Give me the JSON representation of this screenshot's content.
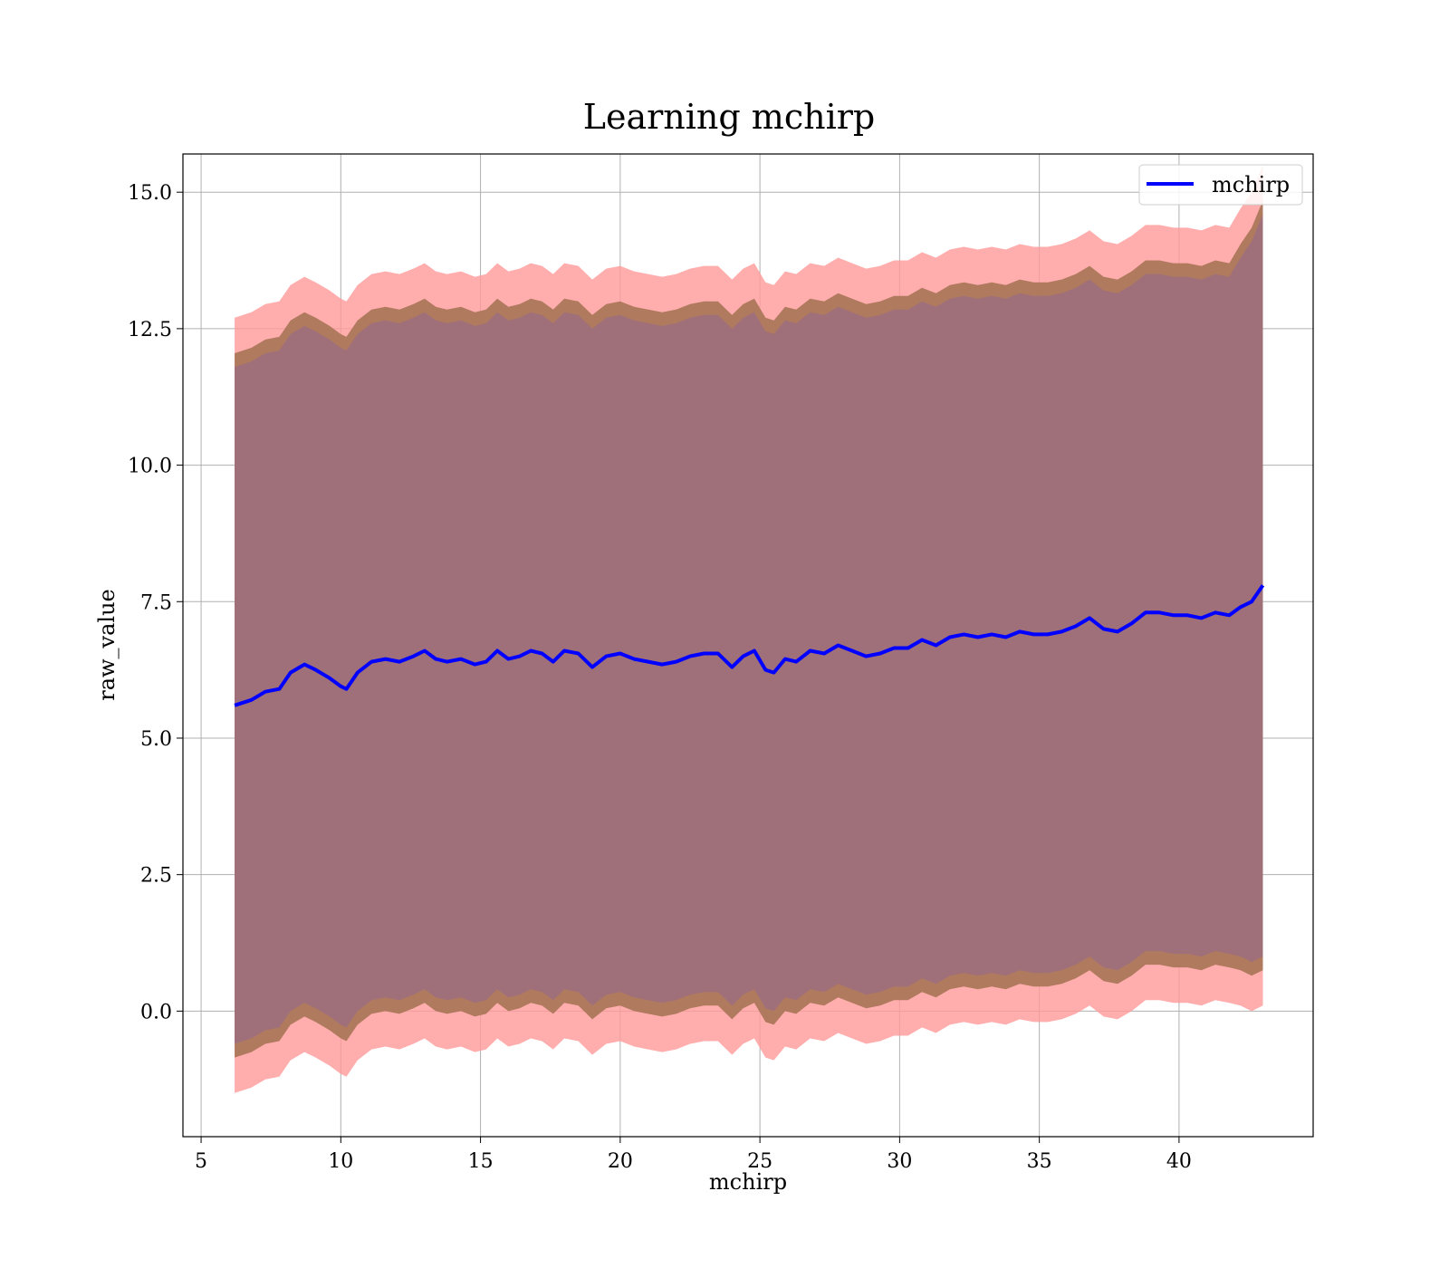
{
  "chart_data": {
    "type": "line",
    "title": "Learning mchirp",
    "xlabel": "mchirp",
    "ylabel": "raw_value",
    "xlim": [
      4.35,
      44.8
    ],
    "ylim": [
      -2.3,
      15.7
    ],
    "xticks": [
      5,
      10,
      15,
      20,
      25,
      30,
      35,
      40
    ],
    "yticks": [
      0.0,
      2.5,
      5.0,
      7.5,
      10.0,
      12.5,
      15.0
    ],
    "xtick_labels": [
      "5",
      "10",
      "15",
      "20",
      "25",
      "30",
      "35",
      "40"
    ],
    "ytick_labels": [
      "0.0",
      "2.5",
      "5.0",
      "7.5",
      "10.0",
      "12.5",
      "15.0"
    ],
    "grid": true,
    "legend_position": "top-right",
    "colors": {
      "line": "#0000ff",
      "outer_band": "#ff9999",
      "middle_band": "#b07a5e",
      "inner_band": "#a0707a",
      "grid": "#b0b0b0"
    },
    "series": [
      {
        "name": "mchirp",
        "x": [
          6.2,
          6.8,
          7.3,
          7.8,
          8.2,
          8.7,
          9.1,
          9.6,
          10.0,
          10.2,
          10.6,
          11.1,
          11.6,
          12.1,
          12.6,
          13.0,
          13.4,
          13.8,
          14.3,
          14.8,
          15.2,
          15.6,
          16.0,
          16.4,
          16.8,
          17.2,
          17.6,
          18.0,
          18.5,
          19.0,
          19.5,
          20.0,
          20.5,
          21.0,
          21.5,
          22.0,
          22.5,
          23.0,
          23.5,
          24.0,
          24.4,
          24.8,
          25.2,
          25.5,
          25.9,
          26.3,
          26.8,
          27.3,
          27.8,
          28.3,
          28.8,
          29.3,
          29.8,
          30.3,
          30.8,
          31.3,
          31.8,
          32.3,
          32.8,
          33.3,
          33.8,
          34.3,
          34.8,
          35.3,
          35.8,
          36.3,
          36.8,
          37.3,
          37.8,
          38.3,
          38.8,
          39.3,
          39.8,
          40.3,
          40.8,
          41.3,
          41.8,
          42.2,
          42.6,
          43.0
        ],
        "values": [
          5.6,
          5.7,
          5.85,
          5.9,
          6.2,
          6.35,
          6.25,
          6.1,
          5.95,
          5.9,
          6.2,
          6.4,
          6.45,
          6.4,
          6.5,
          6.6,
          6.45,
          6.4,
          6.45,
          6.35,
          6.4,
          6.6,
          6.45,
          6.5,
          6.6,
          6.55,
          6.4,
          6.6,
          6.55,
          6.3,
          6.5,
          6.55,
          6.45,
          6.4,
          6.35,
          6.4,
          6.5,
          6.55,
          6.55,
          6.3,
          6.5,
          6.6,
          6.25,
          6.2,
          6.45,
          6.4,
          6.6,
          6.55,
          6.7,
          6.6,
          6.5,
          6.55,
          6.65,
          6.65,
          6.8,
          6.7,
          6.85,
          6.9,
          6.85,
          6.9,
          6.85,
          6.95,
          6.9,
          6.9,
          6.95,
          7.05,
          7.2,
          7.0,
          6.95,
          7.1,
          7.3,
          7.3,
          7.25,
          7.25,
          7.2,
          7.3,
          7.25,
          7.4,
          7.5,
          7.8
        ]
      }
    ],
    "bands": {
      "outer_halfwidth": 7.1,
      "middle_halfwidth": 6.45,
      "inner_halfwidth": 6.2,
      "end_flare": 0.6
    }
  }
}
